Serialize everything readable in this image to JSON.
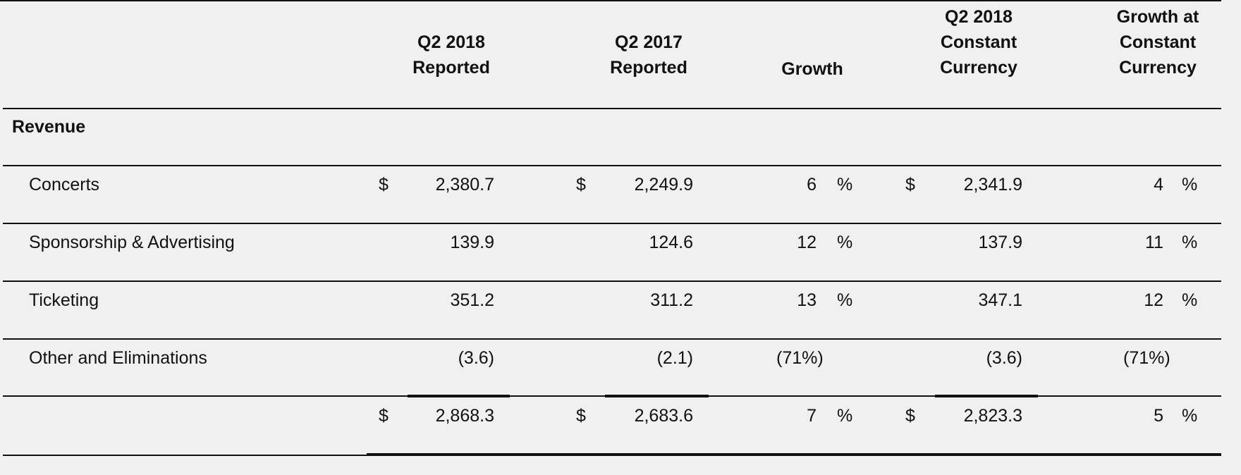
{
  "headers": {
    "q2_2018_reported": [
      "Q2 2018",
      "Reported"
    ],
    "q2_2017_reported": [
      "Q2 2017",
      "Reported"
    ],
    "growth": [
      "Growth"
    ],
    "q2_2018_cc": [
      "Q2 2018",
      "Constant",
      "Currency"
    ],
    "growth_cc": [
      "Growth at",
      "Constant",
      "Currency"
    ]
  },
  "section_label": "Revenue",
  "currency_symbol": "$",
  "percent_symbol": "%",
  "rows": [
    {
      "label": "Concerts",
      "q2_2018": "2,380.7",
      "q2_2017": "2,249.9",
      "growth": "6",
      "q2_2018_cc": "2,341.9",
      "growth_cc": "4"
    },
    {
      "label": "Sponsorship & Advertising",
      "q2_2018": "139.9",
      "q2_2017": "124.6",
      "growth": "12",
      "q2_2018_cc": "137.9",
      "growth_cc": "11"
    },
    {
      "label": "Ticketing",
      "q2_2018": "351.2",
      "q2_2017": "311.2",
      "growth": "13",
      "q2_2018_cc": "347.1",
      "growth_cc": "12"
    },
    {
      "label": "Other and Eliminations",
      "q2_2018": "(3.6)",
      "q2_2017": "(2.1)",
      "growth": "(71%)",
      "q2_2018_cc": "(3.6)",
      "growth_cc": "(71%)"
    },
    {
      "label": "",
      "q2_2018": "2,868.3",
      "q2_2017": "2,683.6",
      "growth": "7",
      "q2_2018_cc": "2,823.3",
      "growth_cc": "5"
    }
  ]
}
